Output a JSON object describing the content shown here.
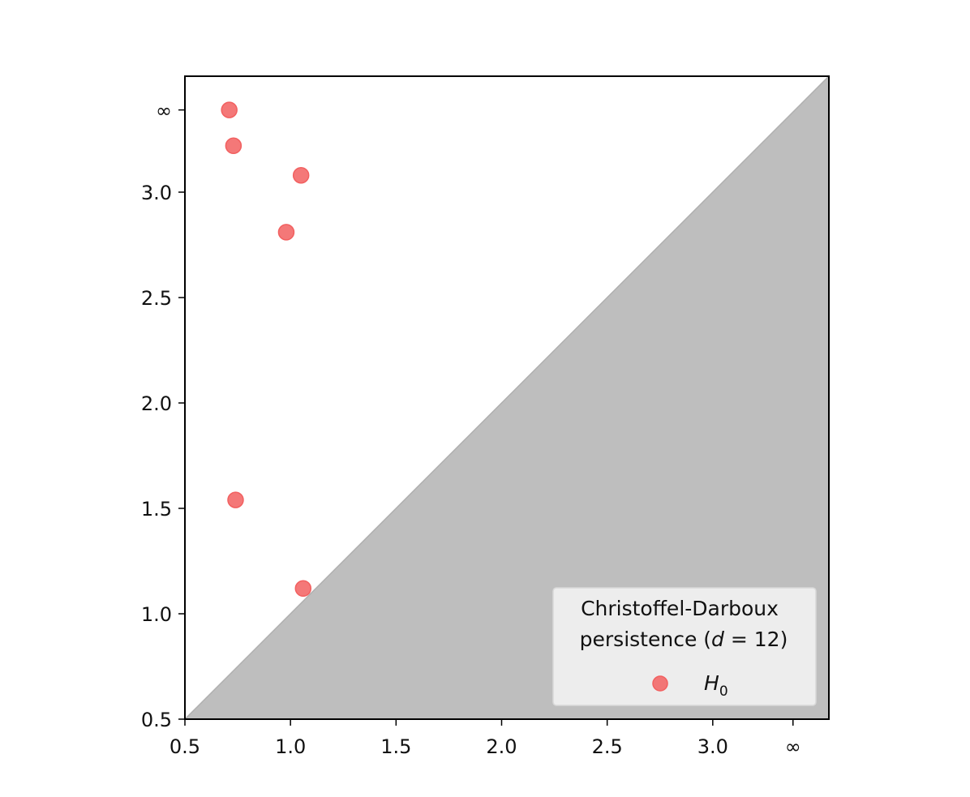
{
  "chart_data": {
    "type": "scatter",
    "title": "",
    "xlabel": "",
    "ylabel": "",
    "xlim": [
      0.5,
      3.55
    ],
    "ylim": [
      0.5,
      3.55
    ],
    "x_ticks": [
      {
        "value": 0.5,
        "label": "0.5"
      },
      {
        "value": 1.0,
        "label": "1.0"
      },
      {
        "value": 1.5,
        "label": "1.5"
      },
      {
        "value": 2.0,
        "label": "2.0"
      },
      {
        "value": 2.5,
        "label": "2.5"
      },
      {
        "value": 3.0,
        "label": "3.0"
      },
      {
        "value": 3.38,
        "label": "∞"
      }
    ],
    "y_ticks": [
      {
        "value": 0.5,
        "label": "0.5"
      },
      {
        "value": 1.0,
        "label": "1.0"
      },
      {
        "value": 1.5,
        "label": "1.5"
      },
      {
        "value": 2.0,
        "label": "2.0"
      },
      {
        "value": 2.5,
        "label": "2.5"
      },
      {
        "value": 3.0,
        "label": "3.0"
      },
      {
        "value": 3.39,
        "label": "∞"
      }
    ],
    "diagonal_shading": {
      "color": "#bebebe"
    },
    "series": [
      {
        "name": "H0",
        "color": "#f26060",
        "points": [
          {
            "x": 0.71,
            "y": 3.39
          },
          {
            "x": 0.73,
            "y": 3.22
          },
          {
            "x": 1.05,
            "y": 3.08
          },
          {
            "x": 0.98,
            "y": 2.81
          },
          {
            "x": 0.74,
            "y": 1.54
          },
          {
            "x": 1.06,
            "y": 1.12
          }
        ]
      }
    ],
    "legend": {
      "title_line1": "Christoffel-Darboux",
      "title_line2_prefix": "persistence (",
      "title_line2_var": "d",
      "title_line2_suffix": " = 12)",
      "entry_symbol": "H",
      "entry_subscript": "0",
      "placement": "lower-right"
    },
    "grid": false
  }
}
